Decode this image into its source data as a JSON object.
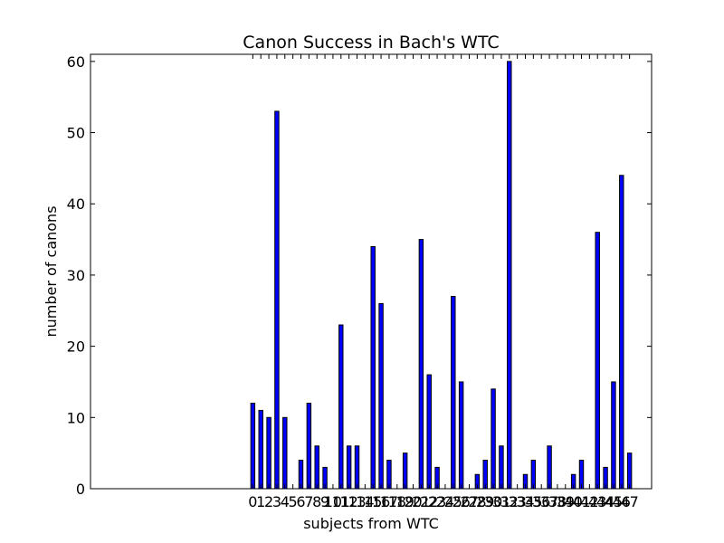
{
  "chart_data": {
    "type": "bar",
    "title": "Canon Success in Bach's WTC",
    "xlabel": "subjects from WTC",
    "ylabel": "number of canons",
    "categories": [
      "0",
      "1",
      "2",
      "3",
      "4",
      "5",
      "6",
      "7",
      "8",
      "9",
      "10",
      "11",
      "12",
      "13",
      "14",
      "15",
      "16",
      "17",
      "18",
      "19",
      "20",
      "21",
      "22",
      "23",
      "24",
      "25",
      "26",
      "27",
      "28",
      "29",
      "30",
      "31",
      "32",
      "33",
      "34",
      "35",
      "36",
      "37",
      "38",
      "39",
      "40",
      "41",
      "42",
      "43",
      "44",
      "45",
      "46",
      "47"
    ],
    "values": [
      12,
      11,
      10,
      53,
      10,
      0,
      4,
      12,
      6,
      3,
      0,
      23,
      6,
      6,
      0,
      34,
      26,
      4,
      0,
      5,
      0,
      35,
      16,
      3,
      0,
      27,
      15,
      0,
      2,
      4,
      14,
      6,
      60,
      0,
      2,
      4,
      0,
      6,
      0,
      0,
      2,
      4,
      0,
      36,
      3,
      15,
      44,
      5
    ],
    "xlim": [
      -20,
      50
    ],
    "ylim": [
      0,
      61
    ],
    "yticks": [
      "0",
      "10",
      "20",
      "30",
      "40",
      "50",
      "60"
    ],
    "bar_color": "#0000ff",
    "grid": false
  }
}
